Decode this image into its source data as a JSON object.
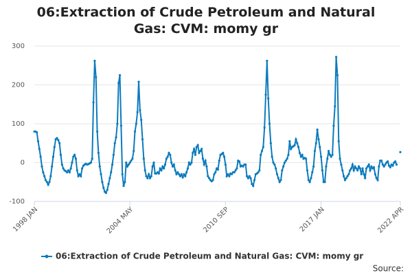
{
  "chart_data": {
    "type": "line",
    "title": "06:Extraction of Crude Petroleum and Natural Gas: CVM: momy gr",
    "source": "Source:",
    "categories": [
      "1998 JAN",
      null,
      null,
      null,
      null,
      null,
      null,
      null,
      null,
      null,
      null,
      null,
      null,
      null,
      null,
      null,
      null,
      null,
      null,
      null,
      null,
      null,
      null,
      null,
      null,
      null,
      null,
      null,
      null,
      null,
      null,
      null,
      null,
      null,
      null,
      null,
      null,
      null,
      null,
      null,
      null,
      null,
      null,
      null,
      null,
      null,
      null,
      null,
      null,
      null,
      null,
      null,
      null,
      null,
      null,
      null,
      null,
      null,
      null,
      null,
      null,
      null,
      null,
      null,
      null,
      null,
      null,
      null,
      null,
      null,
      null,
      null,
      null,
      null,
      null,
      null,
      "2004 MAY",
      null,
      null,
      null,
      null,
      null,
      null,
      null,
      null,
      null,
      null,
      null,
      null,
      null,
      null,
      null,
      null,
      null,
      null,
      null,
      null,
      null,
      null,
      null,
      null,
      null,
      null,
      null,
      null,
      null,
      null,
      null,
      null,
      null,
      null,
      null,
      null,
      null,
      null,
      null,
      null,
      null,
      null,
      null,
      null,
      null,
      null,
      null,
      null,
      null,
      null,
      null,
      null,
      null,
      null,
      null,
      null,
      null,
      null,
      null,
      null,
      null,
      null,
      null,
      null,
      null,
      null,
      null,
      null,
      null,
      null,
      null,
      null,
      null,
      null,
      null,
      "2010 SEP",
      null,
      null,
      null,
      null,
      null,
      null,
      null,
      null,
      null,
      null,
      null,
      null,
      null,
      null,
      null,
      null,
      null,
      null,
      null,
      null,
      null,
      null,
      null,
      null,
      null,
      null,
      null,
      null,
      null,
      null,
      null,
      null,
      null,
      null,
      null,
      null,
      null,
      null,
      null,
      null,
      null,
      null,
      null,
      null,
      null,
      null,
      null,
      null,
      null,
      null,
      null,
      null,
      null,
      null,
      null,
      null,
      null,
      null,
      null,
      null,
      null,
      null,
      null,
      null,
      null,
      null,
      null,
      null,
      null,
      null,
      null,
      null,
      null,
      null,
      null,
      "2017 JAN",
      null,
      null,
      null,
      null,
      null,
      null,
      null,
      null,
      null,
      null,
      null,
      null,
      null,
      null,
      null,
      null,
      null,
      null,
      null,
      null,
      null,
      null,
      null,
      null,
      null,
      null,
      null,
      null,
      null,
      null,
      null,
      null,
      null,
      null,
      null,
      null,
      null,
      null,
      null,
      null,
      null,
      null,
      null,
      null,
      null,
      null,
      null,
      null,
      null,
      null,
      null,
      null,
      null,
      null,
      null,
      null,
      null,
      null,
      null,
      null,
      null,
      null,
      "2022 APR"
    ],
    "series": [
      {
        "name": "06:Extraction of Crude Petroleum and Natural Gas: CVM: momy gr",
        "color": "#0b7bbd",
        "values": [
          80,
          80,
          78,
          55,
          35,
          15,
          -10,
          -25,
          -35,
          -45,
          -50,
          -57,
          -50,
          -35,
          -10,
          15,
          40,
          60,
          63,
          58,
          50,
          20,
          -5,
          -15,
          -20,
          -22,
          -25,
          -20,
          -25,
          -15,
          0,
          15,
          20,
          10,
          -20,
          -35,
          -30,
          -35,
          -15,
          -8,
          -5,
          -3,
          -5,
          -4,
          -2,
          0,
          10,
          155,
          262,
          220,
          80,
          25,
          -10,
          -30,
          -50,
          -65,
          -75,
          -78,
          -70,
          -55,
          -40,
          -25,
          -5,
          20,
          50,
          65,
          100,
          205,
          225,
          95,
          -30,
          -60,
          -50,
          0,
          -10,
          -5,
          0,
          5,
          10,
          30,
          80,
          100,
          130,
          208,
          135,
          110,
          60,
          10,
          -20,
          -35,
          -40,
          -30,
          -40,
          -35,
          -10,
          0,
          -28,
          -28,
          -25,
          -28,
          -15,
          -20,
          -10,
          -15,
          -5,
          10,
          15,
          25,
          20,
          0,
          -10,
          -5,
          -20,
          -30,
          -25,
          -30,
          -35,
          -30,
          -38,
          -30,
          -35,
          -25,
          -15,
          0,
          -5,
          0,
          25,
          35,
          20,
          40,
          45,
          25,
          30,
          35,
          10,
          -5,
          5,
          -10,
          -35,
          -40,
          -45,
          -48,
          -45,
          -30,
          -25,
          -15,
          -18,
          5,
          20,
          22,
          25,
          15,
          -5,
          -35,
          -30,
          -35,
          -28,
          -30,
          -25,
          -25,
          -20,
          -15,
          5,
          3,
          -10,
          -8,
          -10,
          -5,
          -5,
          -35,
          -40,
          -35,
          -40,
          -55,
          -60,
          -45,
          -30,
          -28,
          -25,
          -20,
          20,
          30,
          40,
          90,
          175,
          262,
          165,
          100,
          50,
          15,
          0,
          -5,
          -15,
          -30,
          -40,
          -50,
          -45,
          -20,
          -10,
          0,
          5,
          10,
          20,
          55,
          35,
          40,
          42,
          45,
          60,
          50,
          40,
          25,
          15,
          20,
          10,
          12,
          10,
          -20,
          -45,
          -50,
          -40,
          -25,
          -10,
          30,
          50,
          85,
          60,
          40,
          15,
          -20,
          -50,
          -50,
          -10,
          10,
          30,
          20,
          15,
          20,
          95,
          145,
          272,
          225,
          55,
          10,
          -5,
          -20,
          -35,
          -45,
          -40,
          -35,
          -30,
          -20,
          -15,
          -5,
          -20,
          -10,
          -15,
          -20,
          -10,
          -15,
          -30,
          -15,
          -30,
          -40,
          -15,
          -10,
          -5,
          -20,
          -10,
          -15,
          -12,
          -30,
          -40,
          -45,
          -10,
          5,
          5,
          -5,
          -10,
          -5,
          0,
          3,
          -8,
          -12,
          -5,
          -8,
          0,
          3,
          -5,
          null,
          null,
          27
        ]
      }
    ],
    "ylim": [
      -100,
      300
    ],
    "yticks": [
      -100,
      0,
      100,
      200,
      300
    ],
    "grid": true,
    "legend": "bottom"
  }
}
